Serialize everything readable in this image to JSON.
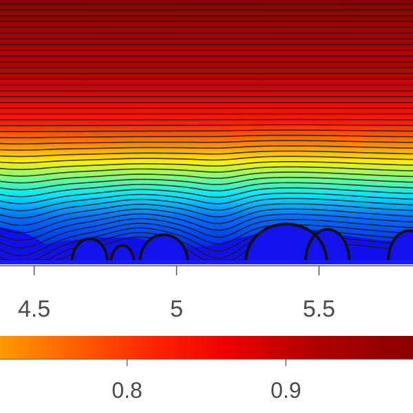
{
  "chart_data": [
    {
      "type": "heatmap",
      "subtype": "contour-with-streamlines",
      "title": "",
      "xlabel": "",
      "ylabel": "",
      "x_range_visible": [
        4.38,
        5.83
      ],
      "x_ticks": [
        4.5,
        5,
        5.5
      ],
      "x_tick_labels": [
        "4.5",
        "5",
        "5.5"
      ],
      "colormap": "jet",
      "bumps_x": [
        4.69,
        4.81,
        4.95,
        5.38,
        5.52,
        5.8
      ],
      "grid": false
    },
    {
      "type": "heatmap",
      "subtype": "colorbar",
      "orientation": "horizontal",
      "colormap": "jet",
      "range_visible": [
        0.72,
        0.98
      ],
      "ticks": [
        0.8,
        0.9
      ],
      "tick_labels": [
        "0.8",
        "0.9"
      ]
    }
  ],
  "colors": {
    "cmap_jet": [
      "#00008f",
      "#0000ff",
      "#0080ff",
      "#00ffff",
      "#80ff80",
      "#ffff00",
      "#ff8000",
      "#ff0000",
      "#800000"
    ],
    "streamline": "#1a1a1a",
    "solid": "#1212ee"
  }
}
